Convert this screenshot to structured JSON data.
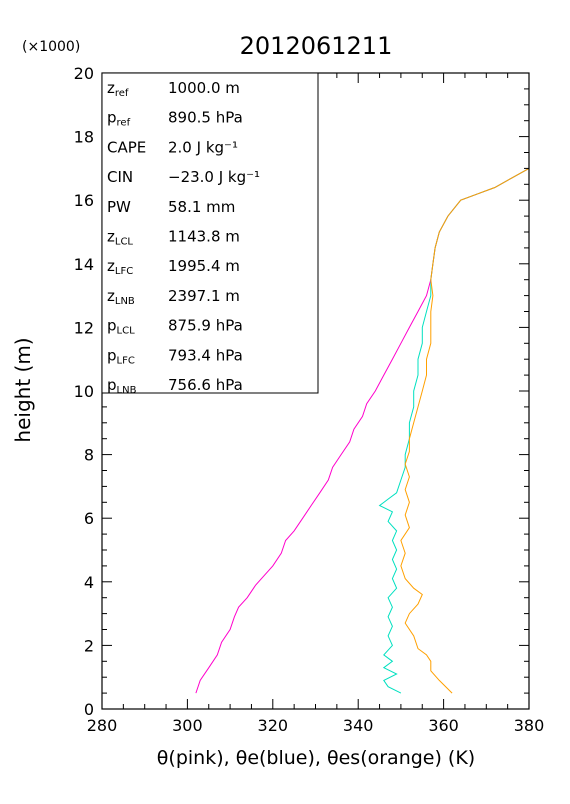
{
  "chart_data": {
    "type": "line",
    "title": "2012061211",
    "xlabel": "θ(pink), θe(blue), θes(orange)   (K)",
    "ylabel": "height (m)",
    "y_multiplier_label": "(×1000)",
    "xlim": [
      280,
      380
    ],
    "ylim": [
      0,
      20
    ],
    "xticks": [
      "280",
      "300",
      "320",
      "340",
      "360",
      "380"
    ],
    "yticks": [
      "0",
      "2",
      "4",
      "6",
      "8",
      "10",
      "12",
      "14",
      "16",
      "18",
      "20"
    ],
    "grid": false,
    "stats_box": [
      {
        "sym": "z",
        "sub": "ref",
        "val": "1000.0 m"
      },
      {
        "sym": "p",
        "sub": "ref",
        "val": "890.5 hPa"
      },
      {
        "sym": "CAPE",
        "sub": "",
        "val": "2.0 J kg⁻¹"
      },
      {
        "sym": "CIN",
        "sub": "",
        "val": "−23.0 J kg⁻¹"
      },
      {
        "sym": "PW",
        "sub": "",
        "val": "58.1 mm"
      },
      {
        "sym": "z",
        "sub": "LCL",
        "val": "1143.8 m"
      },
      {
        "sym": "z",
        "sub": "LFC",
        "val": "1995.4 m"
      },
      {
        "sym": "z",
        "sub": "LNB",
        "val": "2397.1 m"
      },
      {
        "sym": "p",
        "sub": "LCL",
        "val": "875.9 hPa"
      },
      {
        "sym": "p",
        "sub": "LFC",
        "val": "793.4 hPa"
      },
      {
        "sym": "p",
        "sub": "LNB",
        "val": "756.6 hPa"
      }
    ],
    "series": [
      {
        "color": "#ff00cc",
        "points": [
          [
            302,
            0.5
          ],
          [
            303,
            0.9
          ],
          [
            305,
            1.3
          ],
          [
            307,
            1.7
          ],
          [
            308,
            2.1
          ],
          [
            310,
            2.5
          ],
          [
            311,
            2.9
          ],
          [
            312,
            3.2
          ],
          [
            314,
            3.5
          ],
          [
            316,
            3.9
          ],
          [
            318,
            4.2
          ],
          [
            320,
            4.5
          ],
          [
            322,
            4.9
          ],
          [
            323,
            5.3
          ],
          [
            325,
            5.6
          ],
          [
            327,
            6.0
          ],
          [
            329,
            6.4
          ],
          [
            331,
            6.8
          ],
          [
            333,
            7.2
          ],
          [
            334,
            7.6
          ],
          [
            336,
            8.0
          ],
          [
            338,
            8.4
          ],
          [
            339,
            8.8
          ],
          [
            341,
            9.2
          ],
          [
            342,
            9.6
          ],
          [
            344,
            10.0
          ],
          [
            346,
            10.5
          ],
          [
            348,
            11.0
          ],
          [
            350,
            11.5
          ],
          [
            352,
            12.0
          ],
          [
            354,
            12.5
          ],
          [
            356,
            13.0
          ],
          [
            357,
            13.5
          ],
          [
            357.5,
            14.0
          ],
          [
            358,
            14.5
          ],
          [
            359,
            15.0
          ],
          [
            361,
            15.5
          ],
          [
            364,
            16.0
          ],
          [
            368,
            16.2
          ],
          [
            372,
            16.4
          ],
          [
            376,
            16.7
          ],
          [
            380,
            17.0
          ]
        ]
      },
      {
        "color": "#00e0c0",
        "points": [
          [
            350,
            0.5
          ],
          [
            347,
            0.7
          ],
          [
            346,
            0.9
          ],
          [
            349,
            1.1
          ],
          [
            346,
            1.3
          ],
          [
            348,
            1.5
          ],
          [
            346,
            1.7
          ],
          [
            348,
            2.0
          ],
          [
            347,
            2.3
          ],
          [
            348,
            2.6
          ],
          [
            347,
            2.9
          ],
          [
            348,
            3.2
          ],
          [
            347,
            3.5
          ],
          [
            349,
            3.8
          ],
          [
            348,
            4.1
          ],
          [
            349,
            4.4
          ],
          [
            348,
            4.7
          ],
          [
            349,
            5.0
          ],
          [
            348,
            5.3
          ],
          [
            349,
            5.6
          ],
          [
            347,
            5.9
          ],
          [
            348,
            6.2
          ],
          [
            345,
            6.4
          ],
          [
            347,
            6.6
          ],
          [
            349,
            6.8
          ],
          [
            350,
            7.2
          ],
          [
            351,
            7.6
          ],
          [
            351,
            8.0
          ],
          [
            352,
            8.5
          ],
          [
            352,
            9.0
          ],
          [
            353,
            9.5
          ],
          [
            353,
            10.0
          ],
          [
            354,
            10.5
          ],
          [
            354,
            11.0
          ],
          [
            355,
            11.5
          ],
          [
            355,
            12.0
          ],
          [
            356,
            12.5
          ],
          [
            357,
            13.0
          ],
          [
            357,
            13.5
          ],
          [
            357.5,
            14.0
          ],
          [
            358,
            14.5
          ],
          [
            359,
            15.0
          ],
          [
            361,
            15.5
          ],
          [
            364,
            16.0
          ],
          [
            368,
            16.2
          ],
          [
            372,
            16.4
          ],
          [
            376,
            16.7
          ],
          [
            380,
            17.0
          ]
        ]
      },
      {
        "color": "#ffa000",
        "points": [
          [
            362,
            0.5
          ],
          [
            359,
            0.9
          ],
          [
            357,
            1.2
          ],
          [
            357,
            1.5
          ],
          [
            356,
            1.7
          ],
          [
            354,
            1.9
          ],
          [
            353,
            2.3
          ],
          [
            351,
            2.7
          ],
          [
            352,
            3.0
          ],
          [
            354,
            3.3
          ],
          [
            355,
            3.6
          ],
          [
            353,
            3.8
          ],
          [
            351,
            4.1
          ],
          [
            350,
            4.5
          ],
          [
            351,
            4.9
          ],
          [
            350,
            5.3
          ],
          [
            352,
            5.7
          ],
          [
            351,
            6.1
          ],
          [
            352,
            6.5
          ],
          [
            351,
            6.9
          ],
          [
            352,
            7.3
          ],
          [
            351,
            7.7
          ],
          [
            352,
            8.1
          ],
          [
            352,
            8.5
          ],
          [
            353,
            9.0
          ],
          [
            354,
            9.5
          ],
          [
            355,
            10.0
          ],
          [
            356,
            10.5
          ],
          [
            356,
            11.0
          ],
          [
            357,
            11.5
          ],
          [
            357,
            12.0
          ],
          [
            357,
            12.5
          ],
          [
            357.5,
            13.0
          ],
          [
            357,
            13.5
          ],
          [
            357.5,
            14.0
          ],
          [
            358,
            14.5
          ],
          [
            359,
            15.0
          ],
          [
            361,
            15.5
          ],
          [
            364,
            16.0
          ],
          [
            368,
            16.2
          ],
          [
            372,
            16.4
          ],
          [
            376,
            16.7
          ],
          [
            380,
            17.0
          ]
        ]
      }
    ]
  }
}
